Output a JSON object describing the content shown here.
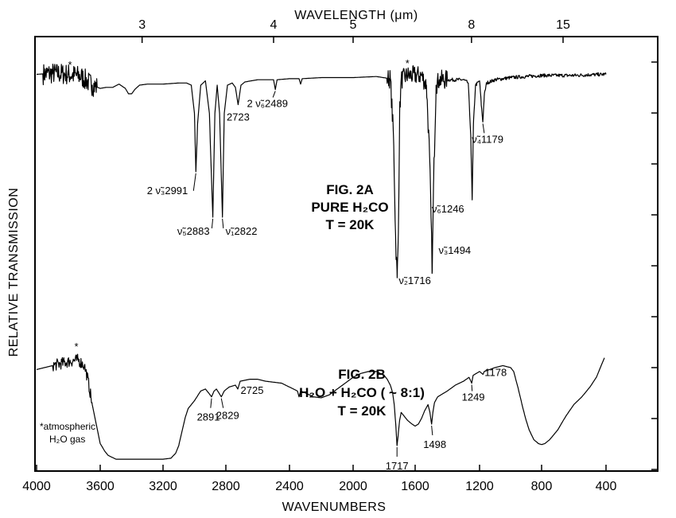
{
  "chart_data": {
    "type": "line",
    "xlabel": "WAVENUMBERS",
    "ylabel": "RELATIVE TRANSMISSION",
    "top_axis_label": "WAVELENGTH (μm)",
    "xlim": [
      4000,
      400
    ],
    "x_ticks": [
      {
        "value": 4000,
        "label": "4000"
      },
      {
        "value": 3600,
        "label": "3600"
      },
      {
        "value": 3200,
        "label": "3200"
      },
      {
        "value": 2800,
        "label": "2800"
      },
      {
        "value": 2400,
        "label": "2400"
      },
      {
        "value": 2000,
        "label": "2000"
      },
      {
        "value": 1600,
        "label": "1600"
      },
      {
        "value": 1200,
        "label": "1200"
      },
      {
        "value": 800,
        "label": "800"
      },
      {
        "value": 400,
        "label": "400"
      }
    ],
    "top_ticks": [
      {
        "micron": 3,
        "label": "3"
      },
      {
        "micron": 4,
        "label": "4"
      },
      {
        "micron": 5,
        "label": "5"
      },
      {
        "micron": 8,
        "label": "8"
      },
      {
        "micron": 15,
        "label": "15"
      }
    ],
    "series": [
      {
        "name": "FIG. 2A PURE H2CO T = 20K",
        "points": [
          [
            4000,
            0.98
          ],
          [
            3900,
            0.985
          ],
          [
            3800,
            0.98
          ],
          [
            3720,
            0.97
          ],
          [
            3650,
            0.93
          ],
          [
            3600,
            0.915
          ],
          [
            3560,
            0.92
          ],
          [
            3520,
            0.92
          ],
          [
            3480,
            0.935
          ],
          [
            3440,
            0.915
          ],
          [
            3420,
            0.89
          ],
          [
            3400,
            0.89
          ],
          [
            3380,
            0.91
          ],
          [
            3350,
            0.93
          ],
          [
            3300,
            0.935
          ],
          [
            3200,
            0.935
          ],
          [
            3100,
            0.94
          ],
          [
            3050,
            0.94
          ],
          [
            3020,
            0.93
          ],
          [
            3000,
            0.8
          ],
          [
            2991,
            0.53
          ],
          [
            2980,
            0.75
          ],
          [
            2960,
            0.93
          ],
          [
            2930,
            0.95
          ],
          [
            2905,
            0.8
          ],
          [
            2883,
            0.32
          ],
          [
            2870,
            0.8
          ],
          [
            2855,
            0.93
          ],
          [
            2840,
            0.8
          ],
          [
            2822,
            0.32
          ],
          [
            2810,
            0.8
          ],
          [
            2790,
            0.93
          ],
          [
            2760,
            0.94
          ],
          [
            2740,
            0.92
          ],
          [
            2723,
            0.84
          ],
          [
            2705,
            0.93
          ],
          [
            2680,
            0.945
          ],
          [
            2600,
            0.955
          ],
          [
            2500,
            0.955
          ],
          [
            2489,
            0.91
          ],
          [
            2478,
            0.955
          ],
          [
            2400,
            0.96
          ],
          [
            2340,
            0.96
          ],
          [
            2330,
            0.935
          ],
          [
            2320,
            0.96
          ],
          [
            2200,
            0.965
          ],
          [
            2000,
            0.965
          ],
          [
            1850,
            0.97
          ],
          [
            1760,
            0.96
          ],
          [
            1740,
            0.7
          ],
          [
            1725,
            0.2
          ],
          [
            1716,
            0.04
          ],
          [
            1708,
            0.25
          ],
          [
            1700,
            0.8
          ],
          [
            1690,
            0.955
          ],
          [
            1650,
            0.975
          ],
          [
            1560,
            0.975
          ],
          [
            1530,
            0.93
          ],
          [
            1510,
            0.6
          ],
          [
            1494,
            0.07
          ],
          [
            1485,
            0.5
          ],
          [
            1470,
            0.93
          ],
          [
            1450,
            0.955
          ],
          [
            1400,
            0.955
          ],
          [
            1300,
            0.955
          ],
          [
            1270,
            0.94
          ],
          [
            1255,
            0.7
          ],
          [
            1246,
            0.4
          ],
          [
            1238,
            0.75
          ],
          [
            1225,
            0.93
          ],
          [
            1200,
            0.95
          ],
          [
            1190,
            0.85
          ],
          [
            1179,
            0.76
          ],
          [
            1170,
            0.88
          ],
          [
            1155,
            0.94
          ],
          [
            1100,
            0.955
          ],
          [
            1000,
            0.965
          ],
          [
            900,
            0.97
          ],
          [
            800,
            0.975
          ],
          [
            700,
            0.975
          ],
          [
            600,
            0.975
          ],
          [
            500,
            0.978
          ],
          [
            400,
            0.98
          ]
        ]
      },
      {
        "name": "FIG. 2B H2O + H2CO (~8:1) T = 20K",
        "points": [
          [
            4000,
            0.48
          ],
          [
            3900,
            0.5
          ],
          [
            3800,
            0.52
          ],
          [
            3740,
            0.53
          ],
          [
            3700,
            0.5
          ],
          [
            3680,
            0.44
          ],
          [
            3650,
            0.3
          ],
          [
            3620,
            0.18
          ],
          [
            3600,
            0.1
          ],
          [
            3570,
            0.06
          ],
          [
            3550,
            0.04
          ],
          [
            3500,
            0.02
          ],
          [
            3400,
            0.02
          ],
          [
            3300,
            0.02
          ],
          [
            3200,
            0.02
          ],
          [
            3150,
            0.025
          ],
          [
            3120,
            0.05
          ],
          [
            3100,
            0.09
          ],
          [
            3080,
            0.16
          ],
          [
            3060,
            0.23
          ],
          [
            3040,
            0.28
          ],
          [
            3000,
            0.32
          ],
          [
            2960,
            0.37
          ],
          [
            2930,
            0.38
          ],
          [
            2910,
            0.36
          ],
          [
            2891,
            0.34
          ],
          [
            2875,
            0.37
          ],
          [
            2860,
            0.38
          ],
          [
            2829,
            0.34
          ],
          [
            2810,
            0.37
          ],
          [
            2780,
            0.39
          ],
          [
            2740,
            0.4
          ],
          [
            2725,
            0.38
          ],
          [
            2710,
            0.42
          ],
          [
            2650,
            0.43
          ],
          [
            2600,
            0.43
          ],
          [
            2550,
            0.42
          ],
          [
            2450,
            0.41
          ],
          [
            2400,
            0.39
          ],
          [
            2350,
            0.37
          ],
          [
            2340,
            0.34
          ],
          [
            2330,
            0.37
          ],
          [
            2300,
            0.36
          ],
          [
            2250,
            0.34
          ],
          [
            2200,
            0.335
          ],
          [
            2150,
            0.35
          ],
          [
            2100,
            0.38
          ],
          [
            2050,
            0.41
          ],
          [
            2000,
            0.44
          ],
          [
            1950,
            0.46
          ],
          [
            1900,
            0.47
          ],
          [
            1850,
            0.47
          ],
          [
            1800,
            0.45
          ],
          [
            1780,
            0.43
          ],
          [
            1760,
            0.4
          ],
          [
            1745,
            0.36
          ],
          [
            1735,
            0.3
          ],
          [
            1725,
            0.2
          ],
          [
            1717,
            0.09
          ],
          [
            1710,
            0.14
          ],
          [
            1700,
            0.22
          ],
          [
            1690,
            0.26
          ],
          [
            1670,
            0.24
          ],
          [
            1650,
            0.22
          ],
          [
            1620,
            0.2
          ],
          [
            1600,
            0.19
          ],
          [
            1580,
            0.2
          ],
          [
            1560,
            0.23
          ],
          [
            1540,
            0.27
          ],
          [
            1520,
            0.3
          ],
          [
            1508,
            0.26
          ],
          [
            1498,
            0.2
          ],
          [
            1490,
            0.26
          ],
          [
            1480,
            0.31
          ],
          [
            1460,
            0.34
          ],
          [
            1400,
            0.37
          ],
          [
            1350,
            0.4
          ],
          [
            1300,
            0.42
          ],
          [
            1265,
            0.44
          ],
          [
            1249,
            0.41
          ],
          [
            1240,
            0.45
          ],
          [
            1200,
            0.47
          ],
          [
            1178,
            0.455
          ],
          [
            1170,
            0.47
          ],
          [
            1100,
            0.49
          ],
          [
            1050,
            0.5
          ],
          [
            1000,
            0.49
          ],
          [
            980,
            0.47
          ],
          [
            950,
            0.38
          ],
          [
            920,
            0.28
          ],
          [
            900,
            0.22
          ],
          [
            880,
            0.17
          ],
          [
            850,
            0.12
          ],
          [
            820,
            0.1
          ],
          [
            800,
            0.095
          ],
          [
            780,
            0.1
          ],
          [
            750,
            0.12
          ],
          [
            700,
            0.17
          ],
          [
            650,
            0.24
          ],
          [
            600,
            0.3
          ],
          [
            550,
            0.34
          ],
          [
            500,
            0.39
          ],
          [
            460,
            0.44
          ],
          [
            430,
            0.5
          ],
          [
            410,
            0.54
          ]
        ]
      }
    ],
    "peak_labels": [
      {
        "text": "*",
        "x": 3800,
        "y": 0.985
      },
      {
        "text": "2 ν̃₃2991",
        "x": 2991,
        "y": 0.53
      },
      {
        "text": "ν̃₅2883",
        "x": 2883,
        "y": 0.32
      },
      {
        "text": "ν̃₁2822",
        "x": 2822,
        "y": 0.32
      },
      {
        "text": "2723",
        "x": 2723,
        "y": 0.84
      },
      {
        "text": "2 ν̃₆2489",
        "x": 2489,
        "y": 0.91
      },
      {
        "text": "*",
        "x": 1650,
        "y": 0.985
      },
      {
        "text": "ν̃₂1716",
        "x": 1716,
        "y": 0.04
      },
      {
        "text": "ν̃₃1494",
        "x": 1494,
        "y": 0.07
      },
      {
        "text": "ν̃₆1246",
        "x": 1246,
        "y": 0.4
      },
      {
        "text": "ν̃₄1179",
        "x": 1179,
        "y": 0.76
      },
      {
        "text": "*",
        "x": 3750,
        "y": 0.53
      },
      {
        "text": "2891",
        "x": 2891,
        "y": 0.34
      },
      {
        "text": "2829",
        "x": 2829,
        "y": 0.34
      },
      {
        "text": "2725",
        "x": 2725,
        "y": 0.38
      },
      {
        "text": "1717",
        "x": 1717,
        "y": 0.09
      },
      {
        "text": "1498",
        "x": 1498,
        "y": 0.2
      },
      {
        "text": "1249",
        "x": 1249,
        "y": 0.41
      },
      {
        "text": "1178",
        "x": 1178,
        "y": 0.455
      }
    ],
    "figure_labels": [
      {
        "lines": [
          "FIG. 2A",
          "PURE H₂CO",
          "T = 20K"
        ]
      },
      {
        "lines": [
          "FIG. 2B",
          "H₂O + H₂CO ( ~ 8:1)",
          "T = 20K"
        ]
      }
    ],
    "annotation": [
      "*atmospheric",
      "H₂O gas"
    ]
  }
}
